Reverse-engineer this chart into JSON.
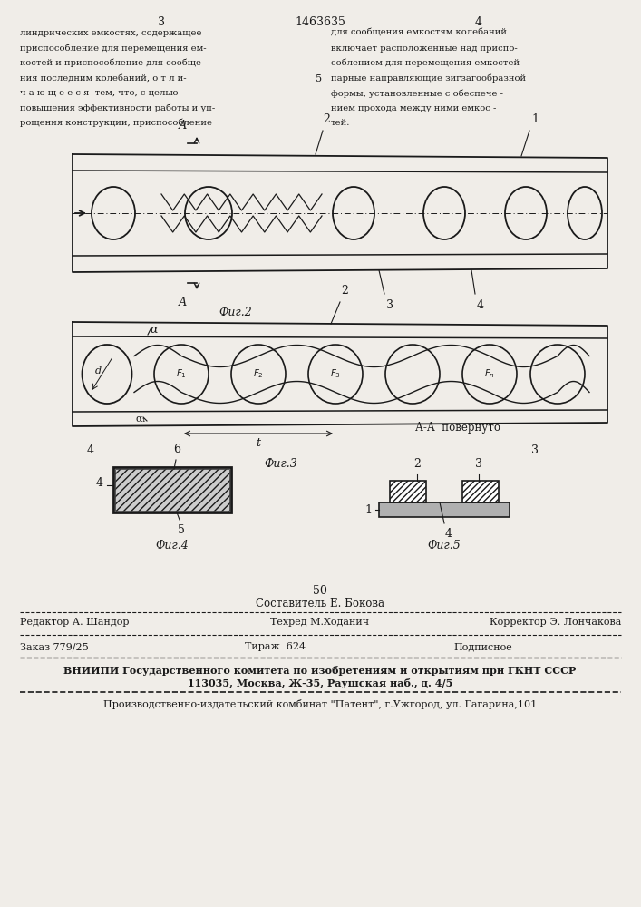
{
  "page_color": "#f0ede8",
  "text_color": "#1a1a1a",
  "header_text": "1463635",
  "page_num_left": "3",
  "page_num_right": "4",
  "left_column_text": [
    "линдрических емкостях, содержащее",
    "приспособление для перемещения ем-",
    "костей и приспособление для сообще-",
    "ния последним колебаний, о т л и-",
    "ч а ю щ е е с я  тем, что, с целью",
    "повышения эффективности работы и уп-",
    "рощения конструкции, приспособление"
  ],
  "right_column_text": [
    "для сообщения емкостям колебаний",
    "включает расположенные над приспо-",
    "соблением для перемещения емкостей",
    "парные направляющие зигзагообразной",
    "формы, установленные с обеспече -",
    "нием прохода между ними емкос -",
    "тей."
  ],
  "right_col_number": "5",
  "fig2_label": "Фиг.2",
  "fig3_label": "Фиг.3",
  "fig4_label": "Фиг.4",
  "fig5_label": "Фиг.5",
  "footer_number": "50",
  "footer_line1": "Составитель Е. Бокова",
  "footer_editor": "Редактор А. Шандор",
  "footer_tech": "Техред М.Ходанич",
  "footer_corrector": "Корректор Э. Лончакова",
  "footer_order": "Заказ 779/25",
  "footer_print": "Тираж  624",
  "footer_sign": "Подписное",
  "footer_vniipи": "ВНИИПИ Государственного комитета по изобретениям и открытиям при ГКНТ СССР",
  "footer_address": "113035, Москва, Ж-35, Раушская наб., д. 4/5",
  "footer_plant": "Производственно-издательский комбинат \"Патент\", г.Ужгород, ул. Гагарина,101"
}
